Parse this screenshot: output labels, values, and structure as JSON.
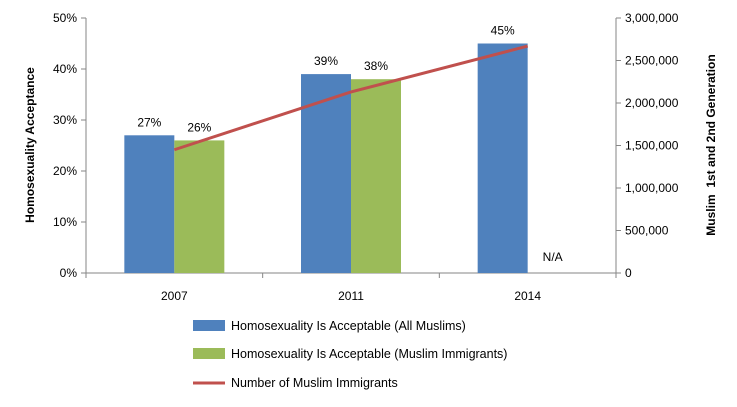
{
  "chart_data": {
    "type": "bar",
    "categories": [
      "2007",
      "2011",
      "2014"
    ],
    "series": [
      {
        "name": "Homosexuality Is Acceptable (All Muslims)",
        "type": "bar",
        "axis": "left",
        "color": "#4f81bd",
        "values": [
          27,
          39,
          45
        ],
        "labels": [
          "27%",
          "39%",
          "45%"
        ]
      },
      {
        "name": "Homosexuality Is Acceptable (Muslim Immigrants)",
        "type": "bar",
        "axis": "left",
        "color": "#9bbb59",
        "values": [
          26,
          38,
          null
        ],
        "labels": [
          "26%",
          "38%",
          "N/A"
        ]
      },
      {
        "name": "Number of Muslim Immigrants",
        "type": "line",
        "axis": "right",
        "color": "#c0504d",
        "values": [
          1450000,
          2130000,
          2670000
        ]
      }
    ],
    "ylabel": "Homosexuality Acceptance",
    "y2label": "Muslim  1st and 2nd Generation",
    "ylim": [
      0,
      50
    ],
    "y2lim": [
      0,
      3000000
    ],
    "yticks": [
      "0%",
      "10%",
      "20%",
      "30%",
      "40%",
      "50%"
    ],
    "y2ticks": [
      "0",
      "500,000",
      "1,000,000",
      "1,500,000",
      "2,000,000",
      "2,500,000",
      "3,000,000"
    ],
    "legend_position": "bottom"
  }
}
